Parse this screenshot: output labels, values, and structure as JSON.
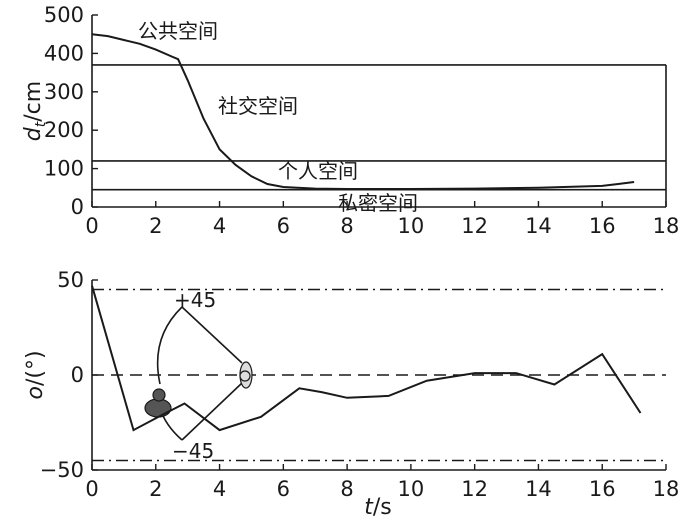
{
  "chart_data": [
    {
      "type": "line",
      "xlim": [
        0,
        18
      ],
      "ylim": [
        0,
        500
      ],
      "xticks": [
        0,
        2,
        4,
        6,
        8,
        10,
        12,
        14,
        16,
        18
      ],
      "yticks": [
        0,
        100,
        200,
        300,
        400,
        500
      ],
      "ylabel": {
        "main": "d",
        "sub": "t",
        "unit": "/cm"
      },
      "zone_boundaries": [
        370,
        120,
        45
      ],
      "zone_labels": [
        "公共空间",
        "社交空间",
        "个人空间",
        "私密空间"
      ],
      "series": [
        {
          "x": [
            0,
            0.5,
            1.0,
            1.5,
            2.0,
            2.5,
            2.7,
            3.0,
            3.5,
            4.0,
            4.5,
            5.0,
            5.5,
            6.0,
            7.0,
            8.0,
            10.0,
            12.0,
            14.0,
            16.0,
            16.5,
            17.0
          ],
          "y": [
            450,
            445,
            435,
            425,
            410,
            392,
            385,
            330,
            230,
            150,
            110,
            80,
            60,
            52,
            48,
            47,
            47,
            48,
            50,
            55,
            60,
            65
          ]
        }
      ]
    },
    {
      "type": "line",
      "xlim": [
        0,
        18
      ],
      "ylim": [
        -50,
        50
      ],
      "xticks": [
        0,
        2,
        4,
        6,
        8,
        10,
        12,
        14,
        16,
        18
      ],
      "yticks": [
        50,
        0,
        -50
      ],
      "ytick_labels": [
        "50",
        "0",
        "−50"
      ],
      "xlabel": {
        "main": "t",
        "unit": "/s"
      },
      "ylabel": {
        "main": "o",
        "unit": "/(°)"
      },
      "reference_lines": [
        {
          "y": 45,
          "style": "dash-dot"
        },
        {
          "y": -45,
          "style": "dash-dot"
        },
        {
          "y": 0,
          "style": "dashed"
        }
      ],
      "annotations": [
        "+45",
        "−45"
      ],
      "series": [
        {
          "x": [
            0,
            1.3,
            2.2,
            2.9,
            4.0,
            5.3,
            6.5,
            7.2,
            8.0,
            9.3,
            10.5,
            12.0,
            13.3,
            14.5,
            16.0,
            17.2
          ],
          "y": [
            47,
            -29,
            -21,
            -15,
            -29,
            -22,
            -7,
            -9,
            -12,
            -11,
            -3,
            1,
            1,
            -5,
            11,
            -20
          ]
        }
      ]
    }
  ],
  "colors": {
    "line": "#1a1a1a",
    "figure_dark": "#555555",
    "figure_light": "#dddddd"
  }
}
